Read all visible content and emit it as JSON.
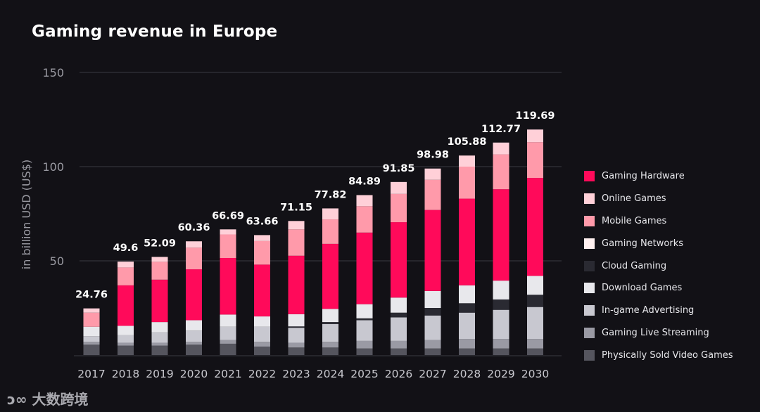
{
  "chart_data": {
    "type": "bar",
    "stacked": true,
    "title": "Gaming revenue in Europe",
    "ylabel": "in billion USD (US$)",
    "xlabel": "",
    "ylim": [
      0,
      150
    ],
    "yticks": [
      50,
      100,
      150
    ],
    "grid": true,
    "legend_position": "right",
    "categories": [
      "2017",
      "2018",
      "2019",
      "2020",
      "2021",
      "2022",
      "2023",
      "2024",
      "2025",
      "2026",
      "2027",
      "2028",
      "2029",
      "2030"
    ],
    "totals": [
      24.76,
      49.6,
      52.09,
      60.36,
      66.69,
      63.66,
      71.15,
      77.82,
      84.89,
      91.85,
      98.98,
      105.88,
      112.77,
      119.69
    ],
    "series": [
      {
        "name": "Physically Sold Video Games",
        "color": "#55555e",
        "values": [
          5.5,
          5,
          5,
          5.5,
          6,
          4.5,
          4,
          4,
          3.5,
          3.5,
          3.5,
          3.5,
          3.5,
          3.5
        ]
      },
      {
        "name": "Gaming Live Streaming",
        "color": "#9a9aa4",
        "values": [
          1.5,
          1.5,
          1.5,
          1.5,
          2,
          2.5,
          2.5,
          3,
          4,
          4,
          4.5,
          5,
          5,
          5
        ]
      },
      {
        "name": "In-game Advertising",
        "color": "#c8c8d0",
        "values": [
          3,
          4,
          5.5,
          6,
          7,
          8,
          8,
          9.5,
          11,
          12.5,
          13,
          14,
          15.5,
          17
        ]
      },
      {
        "name": "Cloud Gaming",
        "color": "#2a2a32",
        "values": [
          0,
          0,
          0,
          0,
          0,
          0,
          0.7,
          1,
          1,
          2.5,
          4,
          5,
          5.5,
          6.5
        ]
      },
      {
        "name": "Download Games",
        "color": "#e8e8ec",
        "values": [
          5,
          5,
          5.5,
          5.5,
          6.5,
          5.5,
          6.5,
          7,
          7.5,
          8,
          9,
          9.5,
          10,
          10
        ]
      },
      {
        "name": "Gaming Hardware",
        "color": "#ff0a5a",
        "values": [
          0,
          21.5,
          22.5,
          27,
          30,
          27.5,
          31,
          34.5,
          38,
          40,
          43,
          46,
          48.5,
          52
        ]
      },
      {
        "name": "Mobile Games",
        "color": "#ff9aaa",
        "values": [
          7.5,
          9.5,
          9.5,
          11.5,
          12.5,
          12.5,
          14,
          13,
          14,
          15,
          16,
          17,
          18.5,
          19
        ]
      },
      {
        "name": "Gaming Networks",
        "color": "#fff0f0",
        "values": [
          0,
          0,
          0,
          0,
          0,
          0,
          0,
          0,
          0,
          0,
          0,
          0,
          0,
          0
        ]
      },
      {
        "name": "Online Games",
        "color": "#ffd0d8",
        "values": [
          2.26,
          3.1,
          2.59,
          3.36,
          2.69,
          3.16,
          4.45,
          5.82,
          5.89,
          6.35,
          5.98,
          5.88,
          6.27,
          6.69
        ]
      }
    ],
    "legend_order": [
      "Gaming Hardware",
      "Online Games",
      "Mobile Games",
      "Gaming Networks",
      "Cloud Gaming",
      "Download Games",
      "In-game Advertising",
      "Gaming Live Streaming",
      "Physically Sold Video Games"
    ]
  },
  "watermark": "大数跨境"
}
